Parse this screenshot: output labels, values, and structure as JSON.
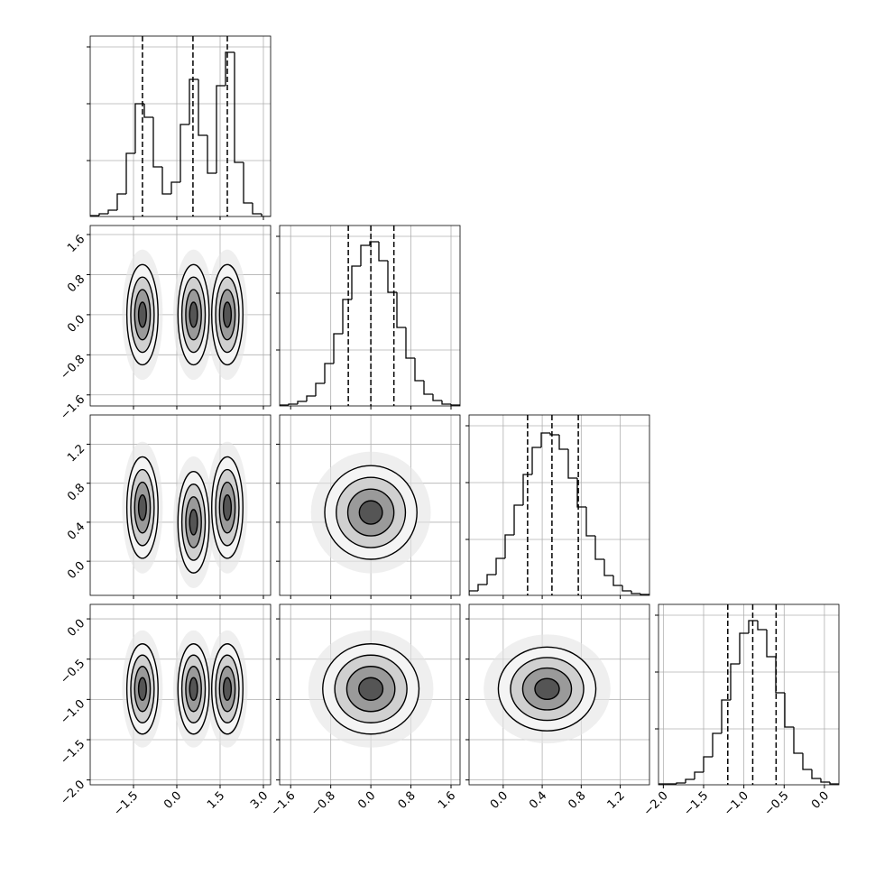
{
  "chart_data": {
    "type": "corner",
    "color": "#000000",
    "grid": true,
    "params": [
      {
        "xlim": [
          -3,
          3.25
        ],
        "xticks": [
          {
            "value": -1.5,
            "label": "−1.5"
          },
          {
            "value": 0,
            "label": "0.0"
          },
          {
            "value": 1.5,
            "label": "1.5"
          },
          {
            "value": 3,
            "label": "3.0"
          }
        ],
        "bins": [
          -3,
          -2.688,
          -2.375,
          -2.063,
          -1.75,
          -1.438,
          -1.125,
          -0.813,
          -0.5,
          -0.188,
          0.125,
          0.438,
          0.75,
          1.063,
          1.375,
          1.688,
          2,
          2.313,
          2.625,
          2.938,
          3.25
        ],
        "values": [
          1,
          3,
          7,
          25,
          70,
          125,
          110,
          55,
          25,
          38,
          102,
          152,
          90,
          48,
          145,
          182,
          60,
          15,
          3,
          0
        ],
        "quantiles": [
          -1.19,
          0.56,
          1.75
        ],
        "ylim": [
          0,
          200
        ],
        "yticks": [
          62,
          125,
          188
        ]
      },
      {
        "xlim": [
          -1.82,
          1.78
        ],
        "xticks": [
          {
            "value": -1.6,
            "label": "−1.6"
          },
          {
            "value": -0.8,
            "label": "−0.8"
          },
          {
            "value": 0,
            "label": "0.0"
          },
          {
            "value": 0.8,
            "label": "0.8"
          },
          {
            "value": 1.6,
            "label": "1.6"
          }
        ],
        "bins": [
          -1.82,
          -1.64,
          -1.46,
          -1.28,
          -1.1,
          -0.92,
          -0.74,
          -0.56,
          -0.38,
          -0.2,
          -0.02,
          0.16,
          0.34,
          0.52,
          0.7,
          0.88,
          1.06,
          1.24,
          1.42,
          1.6,
          1.78
        ],
        "values": [
          1,
          2,
          5,
          11,
          25,
          47,
          80,
          118,
          155,
          178,
          182,
          161,
          126,
          87,
          53,
          28,
          13,
          6,
          2,
          1
        ],
        "quantiles": [
          -0.45,
          0,
          0.46
        ],
        "ylim": [
          0,
          200
        ],
        "yticks": [
          62,
          125,
          188
        ]
      },
      {
        "xlim": [
          -0.35,
          1.5
        ],
        "xticks": [
          {
            "value": 0,
            "label": "0.0"
          },
          {
            "value": 0.4,
            "label": "0.4"
          },
          {
            "value": 0.8,
            "label": "0.8"
          },
          {
            "value": 1.2,
            "label": "1.2"
          }
        ],
        "bins": [
          -0.35,
          -0.2575,
          -0.165,
          -0.0725,
          0.02,
          0.1125,
          0.205,
          0.2975,
          0.39,
          0.4825,
          0.575,
          0.6675,
          0.76,
          0.8525,
          0.945,
          1.0375,
          1.13,
          1.2225,
          1.315,
          1.4075,
          1.5
        ],
        "values": [
          5,
          12,
          23,
          41,
          67,
          100,
          134,
          164,
          180,
          178,
          162,
          130,
          98,
          66,
          40,
          22,
          11,
          5,
          2,
          1
        ],
        "quantiles": [
          0.25,
          0.5,
          0.77
        ],
        "ylim": [
          0,
          200
        ],
        "yticks": [
          62,
          125,
          188
        ]
      },
      {
        "xlim": [
          -2.06,
          0.18
        ],
        "xticks": [
          {
            "value": -2,
            "label": "−2.0"
          },
          {
            "value": -1.5,
            "label": "−1.5"
          },
          {
            "value": -1,
            "label": "−1.0"
          },
          {
            "value": -0.5,
            "label": "−0.5"
          },
          {
            "value": 0,
            "label": "0.0"
          }
        ],
        "bins": [
          -2.06,
          -1.948,
          -1.836,
          -1.724,
          -1.612,
          -1.5,
          -1.388,
          -1.276,
          -1.164,
          -1.052,
          -0.94,
          -0.828,
          -0.716,
          -0.604,
          -0.492,
          -0.38,
          -0.268,
          -0.156,
          -0.044,
          0.068,
          0.18
        ],
        "values": [
          1,
          1,
          2,
          6,
          14,
          31,
          57,
          94,
          134,
          168,
          182,
          172,
          142,
          102,
          64,
          35,
          17,
          7,
          3,
          1
        ],
        "quantiles": [
          -1.2,
          -0.89,
          -0.6
        ],
        "ylim": [
          0,
          200
        ],
        "yticks": [
          62,
          125,
          188
        ]
      }
    ],
    "panels": [
      {
        "x": 0,
        "y": 1,
        "modes": [
          {
            "x": -1.19,
            "y": 0,
            "sx": 0.27,
            "sy": 0.5
          },
          {
            "x": 0.58,
            "y": 0,
            "sx": 0.27,
            "sy": 0.5
          },
          {
            "x": 1.75,
            "y": 0,
            "sx": 0.27,
            "sy": 0.5
          }
        ]
      },
      {
        "x": 0,
        "y": 2,
        "modes": [
          {
            "x": -1.19,
            "y": 0.55,
            "sx": 0.27,
            "sy": 0.26
          },
          {
            "x": 0.58,
            "y": 0.4,
            "sx": 0.27,
            "sy": 0.26
          },
          {
            "x": 1.75,
            "y": 0.55,
            "sx": 0.27,
            "sy": 0.26
          }
        ]
      },
      {
        "x": 1,
        "y": 2,
        "modes": [
          {
            "x": 0,
            "y": 0.5,
            "sx": 0.46,
            "sy": 0.24
          }
        ]
      },
      {
        "x": 0,
        "y": 3,
        "modes": [
          {
            "x": -1.19,
            "y": -0.87,
            "sx": 0.27,
            "sy": 0.28
          },
          {
            "x": 0.58,
            "y": -0.87,
            "sx": 0.27,
            "sy": 0.28
          },
          {
            "x": 1.75,
            "y": -0.87,
            "sx": 0.27,
            "sy": 0.28
          }
        ]
      },
      {
        "x": 1,
        "y": 3,
        "modes": [
          {
            "x": 0,
            "y": -0.87,
            "sx": 0.48,
            "sy": 0.28
          }
        ]
      },
      {
        "x": 2,
        "y": 3,
        "modes": [
          {
            "x": 0.45,
            "y": -0.87,
            "sx": 0.25,
            "sy": 0.26
          }
        ]
      }
    ]
  }
}
